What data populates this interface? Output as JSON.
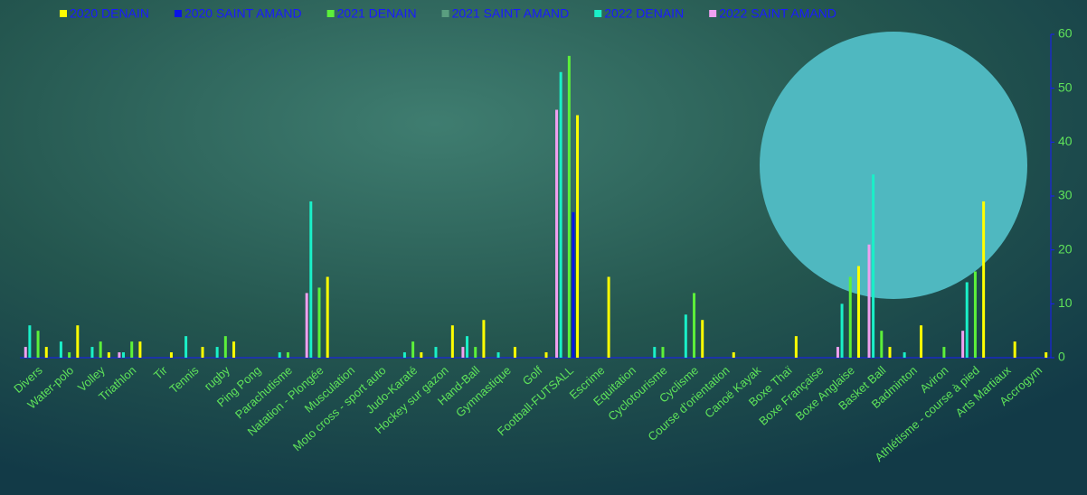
{
  "chart_data": {
    "type": "bar",
    "categories": [
      "Divers",
      "Water-polo",
      "Volley",
      "Triathlon",
      "Tir",
      "Tennis",
      "rugby",
      "Ping Pong",
      "Parachutisme",
      "Natation - Plongée",
      "Musculation",
      "Moto cross - sport auto",
      "Judo-Karaté",
      "Hockey sur gazon",
      "Hand-Ball",
      "Gymnastique",
      "Golf",
      "Football-FUTSALL",
      "Escrime",
      "Equitation",
      "Cyclotourisme",
      "Cyclisme",
      "Course d'orientation",
      "Canoë Kayak",
      "Boxe Thaï",
      "Boxe Française",
      "Boxe Anglaise",
      "Basket Ball",
      "Badminton",
      "Aviron",
      "Athlétisme - course à pied",
      "Arts Martiaux",
      "Accrogym"
    ],
    "series": [
      {
        "name": "2020 DENAIN",
        "color": "#ffff00",
        "values": [
          2,
          6,
          1,
          3,
          1,
          2,
          3,
          0,
          0,
          15,
          0,
          0,
          1,
          6,
          7,
          2,
          1,
          45,
          15,
          0,
          0,
          7,
          1,
          0,
          4,
          0,
          17,
          2,
          6,
          0,
          29,
          3,
          1
        ]
      },
      {
        "name": "2020 SAINT AMAND",
        "color": "#0a14e6",
        "values": [
          0,
          0,
          0,
          0,
          0,
          0,
          0,
          0,
          0,
          0,
          0,
          0,
          0,
          0,
          0,
          0,
          0,
          27,
          0,
          0,
          0,
          0,
          0,
          0,
          0,
          0,
          0,
          0,
          0,
          0,
          0,
          0,
          0
        ]
      },
      {
        "name": "2021 DENAIN",
        "color": "#5cf03a",
        "values": [
          5,
          1,
          3,
          3,
          0,
          0,
          4,
          0,
          1,
          13,
          0,
          0,
          3,
          0,
          2,
          0,
          0,
          56,
          0,
          0,
          2,
          12,
          0,
          0,
          0,
          0,
          15,
          5,
          0,
          2,
          16,
          0,
          0
        ]
      },
      {
        "name": "2021 SAINT AMAND",
        "color": "#5a9e80",
        "values": [
          0,
          0,
          0,
          0,
          0,
          0,
          0,
          0,
          0,
          0,
          0,
          0,
          0,
          0,
          0,
          0,
          0,
          0,
          0,
          0,
          0,
          0,
          0,
          0,
          0,
          0,
          0,
          0,
          0,
          0,
          0,
          0,
          0
        ]
      },
      {
        "name": "2022 DENAIN",
        "color": "#1af0c8",
        "values": [
          6,
          3,
          2,
          1,
          0,
          4,
          2,
          0,
          1,
          29,
          0,
          0,
          1,
          2,
          4,
          1,
          0,
          53,
          0,
          0,
          2,
          8,
          0,
          0,
          0,
          0,
          10,
          34,
          1,
          0,
          14,
          0,
          0
        ]
      },
      {
        "name": "2022 SAINT AMAND",
        "color": "#f0a0f0",
        "values": [
          2,
          0,
          0,
          1,
          0,
          0,
          0,
          0,
          0,
          12,
          0,
          0,
          0,
          0,
          2,
          0,
          0,
          46,
          0,
          0,
          0,
          0,
          0,
          0,
          0,
          0,
          2,
          21,
          0,
          0,
          5,
          0,
          0
        ]
      }
    ],
    "ylim": [
      0,
      60
    ],
    "yticks": [
      0,
      10,
      20,
      30,
      40,
      50,
      60
    ],
    "legend": "top"
  }
}
